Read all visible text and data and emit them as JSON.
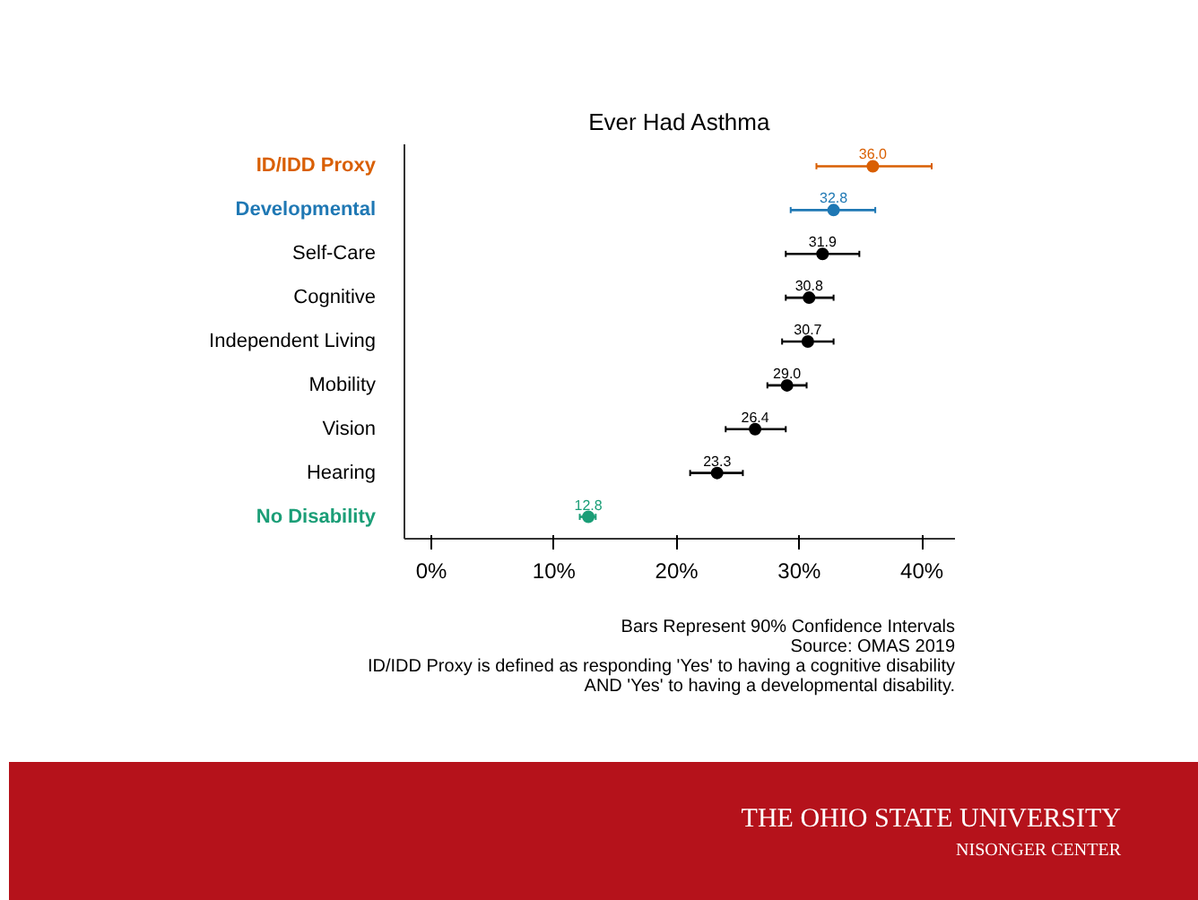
{
  "chart_data": {
    "type": "scatter",
    "title": "Ever Had Asthma",
    "categories": [
      "ID/IDD Proxy",
      "Developmental",
      "Self-Care",
      "Cognitive",
      "Independent Living",
      "Mobility",
      "Vision",
      "Hearing",
      "No Disability"
    ],
    "values": [
      36.0,
      32.8,
      31.9,
      30.8,
      30.7,
      29.0,
      26.4,
      23.3,
      12.8
    ],
    "errors": [
      [
        31.4,
        40.8
      ],
      [
        29.3,
        36.2
      ],
      [
        28.9,
        34.9
      ],
      [
        28.9,
        32.8
      ],
      [
        28.6,
        32.8
      ],
      [
        27.4,
        30.6
      ],
      [
        24.0,
        28.9
      ],
      [
        21.1,
        25.4
      ],
      [
        12.1,
        13.4
      ]
    ],
    "colors": [
      "#d95f02",
      "#1f78b4",
      "#000000",
      "#000000",
      "#000000",
      "#000000",
      "#000000",
      "#000000",
      "#1b9e77"
    ],
    "orientation": "horizontal",
    "xlim": [
      -2.2,
      42.7
    ],
    "xticks": [
      {
        "value": 0,
        "label": "0%"
      },
      {
        "value": 10,
        "label": "10%"
      },
      {
        "value": 20,
        "label": "20%"
      },
      {
        "value": 30,
        "label": "30%"
      },
      {
        "value": 40,
        "label": "40%"
      }
    ],
    "value_labels": [
      "36.0",
      "32.8",
      "31.9",
      "30.8",
      "30.7",
      "29.0",
      "26.4",
      "23.3",
      "12.8"
    ],
    "marker": "circle",
    "grid": false,
    "annotations": [
      "Bars Represent 90% Confidence Intervals",
      "Source: OMAS 2019",
      "ID/IDD Proxy is defined as responding 'Yes' to having a cognitive disability",
      "AND 'Yes' to having a developmental disability.",
      "THE OHIO STATE UNIVERSITY",
      "NISONGER CENTER"
    ]
  }
}
